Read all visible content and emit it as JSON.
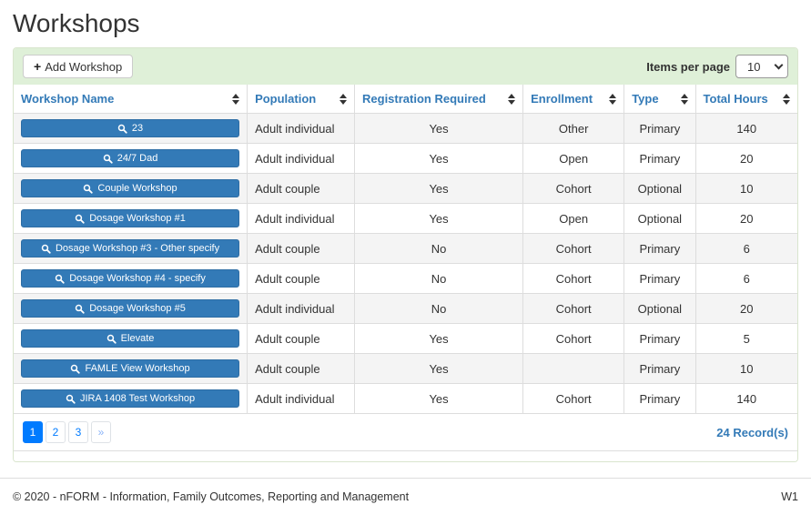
{
  "page": {
    "title": "Workshops"
  },
  "toolbar": {
    "add_button_label": "Add Workshop",
    "items_per_page_label": "Items per page",
    "items_per_page_value": "10"
  },
  "table": {
    "columns": [
      {
        "label": "Workshop Name"
      },
      {
        "label": "Population"
      },
      {
        "label": "Registration Required"
      },
      {
        "label": "Enrollment"
      },
      {
        "label": "Type"
      },
      {
        "label": "Total Hours"
      }
    ],
    "rows": [
      {
        "name": "23",
        "population": "Adult individual",
        "registration_required": "Yes",
        "enrollment": "Other",
        "type": "Primary",
        "total_hours": "140"
      },
      {
        "name": "24/7 Dad",
        "population": "Adult individual",
        "registration_required": "Yes",
        "enrollment": "Open",
        "type": "Primary",
        "total_hours": "20"
      },
      {
        "name": "Couple Workshop",
        "population": "Adult couple",
        "registration_required": "Yes",
        "enrollment": "Cohort",
        "type": "Optional",
        "total_hours": "10"
      },
      {
        "name": "Dosage Workshop #1",
        "population": "Adult individual",
        "registration_required": "Yes",
        "enrollment": "Open",
        "type": "Optional",
        "total_hours": "20"
      },
      {
        "name": "Dosage Workshop #3 - Other specify",
        "population": "Adult couple",
        "registration_required": "No",
        "enrollment": "Cohort",
        "type": "Primary",
        "total_hours": "6"
      },
      {
        "name": "Dosage Workshop #4 - specify",
        "population": "Adult couple",
        "registration_required": "No",
        "enrollment": "Cohort",
        "type": "Primary",
        "total_hours": "6"
      },
      {
        "name": "Dosage Workshop #5",
        "population": "Adult individual",
        "registration_required": "No",
        "enrollment": "Cohort",
        "type": "Optional",
        "total_hours": "20"
      },
      {
        "name": "Elevate",
        "population": "Adult couple",
        "registration_required": "Yes",
        "enrollment": "Cohort",
        "type": "Primary",
        "total_hours": "5"
      },
      {
        "name": "FAMLE View Workshop",
        "population": "Adult couple",
        "registration_required": "Yes",
        "enrollment": "",
        "type": "Primary",
        "total_hours": "10"
      },
      {
        "name": "JIRA 1408 Test Workshop",
        "population": "Adult individual",
        "registration_required": "Yes",
        "enrollment": "Cohort",
        "type": "Primary",
        "total_hours": "140"
      }
    ]
  },
  "pagination": {
    "pages": [
      "1",
      "2",
      "3",
      "»"
    ],
    "active_page": "1",
    "records_label": "24 Record(s)"
  },
  "footer": {
    "copyright": "© 2020 - nFORM - Information, Family Outcomes, Reporting and Management",
    "site_code": "W1"
  },
  "colors": {
    "accent_blue": "#337ab7",
    "pagination_blue": "#007bff",
    "toolbar_green": "#dff0d8",
    "stripe_gray": "#f4f4f4"
  }
}
